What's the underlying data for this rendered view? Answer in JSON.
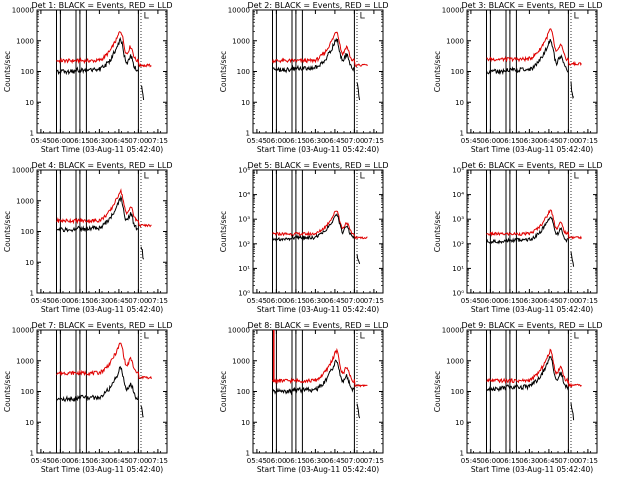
{
  "layout": {
    "rows": 3,
    "cols": 3
  },
  "colors": {
    "events": "#000000",
    "lld": "#e00000",
    "axes": "#000000",
    "background": "#ffffff"
  },
  "common": {
    "xlabel": "Start Time (03-Aug-11 05:42:40)",
    "ylabel": "Counts/sec",
    "x_tick_labels": [
      "05:45",
      "06:00",
      "06:15",
      "06:30",
      "06:45",
      "07:00",
      "07:15"
    ],
    "x_ticks_min": [
      3,
      18,
      33,
      48,
      63,
      78,
      93
    ],
    "xlim_min": [
      0,
      100
    ],
    "ylim": [
      1,
      10000
    ],
    "y_scale": "log"
  },
  "chart_data": [
    {
      "type": "line",
      "title": "Det 1: BLACK = Events, RED = LLD",
      "y_tick_labels": [
        "1",
        "10",
        "100",
        "1000",
        "10000"
      ],
      "vlines_min": [
        15,
        18,
        30,
        33,
        38,
        78
      ],
      "series": [
        {
          "name": "Events",
          "color": "#000000"
        },
        {
          "name": "LLD",
          "color": "#e00000"
        }
      ],
      "black_offset": -0.3,
      "red_offset": 0.0,
      "spike_min": null
    },
    {
      "type": "line",
      "title": "Det 2: BLACK = Events, RED = LLD",
      "y_tick_labels": [
        "1",
        "10",
        "100",
        "1000",
        "10000"
      ],
      "vlines_min": [
        15,
        18,
        30,
        33,
        38,
        78
      ],
      "series": [
        {
          "name": "Events",
          "color": "#000000"
        },
        {
          "name": "LLD",
          "color": "#e00000"
        }
      ],
      "black_offset": -0.25,
      "red_offset": 0.0,
      "spike_min": null
    },
    {
      "type": "line",
      "title": "Det 3: BLACK = Events, RED = LLD",
      "y_tick_labels": [
        "1",
        "10",
        "100",
        "1000",
        "10000"
      ],
      "vlines_min": [
        15,
        18,
        30,
        33,
        38,
        78
      ],
      "series": [
        {
          "name": "Events",
          "color": "#000000"
        },
        {
          "name": "LLD",
          "color": "#e00000"
        }
      ],
      "black_offset": -0.3,
      "red_offset": 0.05,
      "spike_min": null
    },
    {
      "type": "line",
      "title": "Det 4: BLACK = Events, RED = LLD",
      "y_tick_labels": [
        "1",
        "10",
        "100",
        "1000",
        "10000"
      ],
      "vlines_min": [
        15,
        18,
        30,
        33,
        38,
        78
      ],
      "series": [
        {
          "name": "Events",
          "color": "#000000"
        },
        {
          "name": "LLD",
          "color": "#e00000"
        }
      ],
      "black_offset": -0.25,
      "red_offset": 0.0,
      "spike_min": null
    },
    {
      "type": "line",
      "title": "Det 5: BLACK = Events, RED = LLD",
      "y_tick_labels": [
        "10⁰",
        "10¹",
        "10²",
        "10³",
        "10⁴",
        "10⁵"
      ],
      "y_max_exp": 5,
      "vlines_min": [
        15,
        18,
        30,
        33,
        38,
        78
      ],
      "series": [
        {
          "name": "Events",
          "color": "#000000"
        },
        {
          "name": "LLD",
          "color": "#e00000"
        }
      ],
      "black_offset": -0.1,
      "red_offset": 0.05,
      "spike_min": null
    },
    {
      "type": "line",
      "title": "Det 6: BLACK = Events, RED = LLD",
      "y_tick_labels": [
        "10⁰",
        "10¹",
        "10²",
        "10³",
        "10⁴",
        "10⁵"
      ],
      "y_max_exp": 5,
      "vlines_min": [
        15,
        18,
        30,
        33,
        38,
        78
      ],
      "series": [
        {
          "name": "Events",
          "color": "#000000"
        },
        {
          "name": "LLD",
          "color": "#e00000"
        }
      ],
      "black_offset": -0.2,
      "red_offset": 0.05,
      "spike_min": null
    },
    {
      "type": "line",
      "title": "Det 7: BLACK = Events, RED = LLD",
      "y_tick_labels": [
        "1",
        "10",
        "100",
        "1000",
        "10000"
      ],
      "vlines_min": [
        15,
        18,
        30,
        33,
        38,
        78
      ],
      "series": [
        {
          "name": "Events",
          "color": "#000000"
        },
        {
          "name": "LLD",
          "color": "#e00000"
        }
      ],
      "black_offset": -0.55,
      "red_offset": 0.25,
      "spike_min": null
    },
    {
      "type": "line",
      "title": "Det 8: BLACK = Events, RED = LLD",
      "y_tick_labels": [
        "1",
        "10",
        "100",
        "1000",
        "10000"
      ],
      "vlines_min": [
        15,
        18,
        30,
        33,
        38,
        78
      ],
      "series": [
        {
          "name": "Events",
          "color": "#000000"
        },
        {
          "name": "LLD",
          "color": "#e00000"
        }
      ],
      "black_offset": -0.3,
      "red_offset": 0.0,
      "spike_min": 16
    },
    {
      "type": "line",
      "title": "Det 9: BLACK = Events, RED = LLD",
      "y_tick_labels": [
        "1",
        "10",
        "100",
        "1000",
        "10000"
      ],
      "vlines_min": [
        15,
        18,
        30,
        33,
        38,
        78
      ],
      "series": [
        {
          "name": "Events",
          "color": "#000000"
        },
        {
          "name": "LLD",
          "color": "#e00000"
        }
      ],
      "black_offset": -0.2,
      "red_offset": 0.0,
      "spike_min": null
    }
  ]
}
